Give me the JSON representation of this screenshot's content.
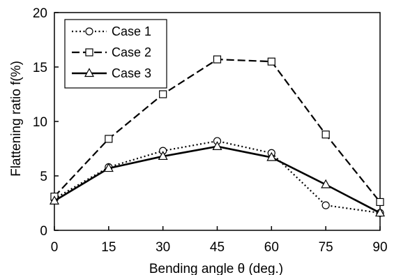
{
  "chart_data": {
    "type": "line",
    "x": [
      0,
      15,
      30,
      45,
      60,
      75,
      90
    ],
    "xticks": [
      "0",
      "15",
      "30",
      "45",
      "60",
      "75",
      "90"
    ],
    "yticks": [
      "0",
      "5",
      "10",
      "15",
      "20"
    ],
    "xlim": [
      0,
      90
    ],
    "ylim": [
      0,
      20
    ],
    "grid": false,
    "legend_position": "top-left",
    "xlabel": "Bending angle  θ (deg.)",
    "ylabel": "Flattening ratio  f(%)",
    "series": [
      {
        "name": "Case 1",
        "marker": "circle",
        "dash": "dotted",
        "values": [
          2.9,
          5.8,
          7.3,
          8.2,
          7.1,
          2.3,
          1.6
        ]
      },
      {
        "name": "Case 2",
        "marker": "square",
        "dash": "dashed",
        "values": [
          3.1,
          8.4,
          12.5,
          15.7,
          15.5,
          8.8,
          2.6
        ]
      },
      {
        "name": "Case 3",
        "marker": "triangle",
        "dash": "solid",
        "values": [
          2.7,
          5.7,
          6.8,
          7.7,
          6.7,
          4.2,
          1.6
        ]
      }
    ]
  }
}
